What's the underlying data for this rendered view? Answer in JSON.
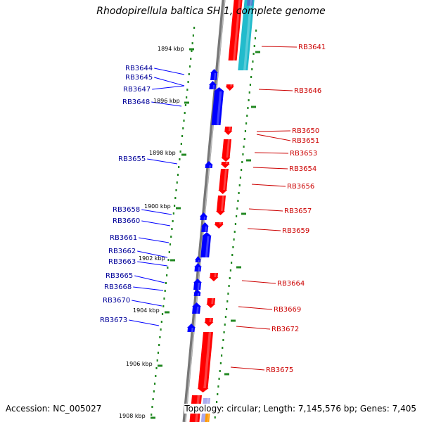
{
  "title": "Rhodopirellula baltica SH 1, complete genome",
  "footer": {
    "accession": "Accession: NC_005027",
    "summary": "Topology: circular; Length: 7,145,576 bp; Genes: 7,405"
  },
  "colors": {
    "forward": "#ff0000",
    "reverse": "#0000ff",
    "backbone": "#888888",
    "tick": "#228822",
    "forward_label": "#cc0000",
    "reverse_label": "#000099"
  },
  "scale_labels": [
    "1894 kbp",
    "1896 kbp",
    "1898 kbp",
    "1900 kbp",
    "1902 kbp",
    "1904 kbp",
    "1906 kbp",
    "1908 kbp"
  ],
  "reverse_genes": [
    "RB3644",
    "RB3645",
    "RB3647",
    "RB3648",
    "RB3655",
    "RB3658",
    "RB3660",
    "RB3661",
    "RB3662",
    "RB3663",
    "RB3665",
    "RB3668",
    "RB3670",
    "RB3673"
  ],
  "forward_genes": [
    "RB3641",
    "RB3646",
    "RB3650",
    "RB3651",
    "RB3653",
    "RB3654",
    "RB3656",
    "RB3657",
    "RB3659",
    "RB3664",
    "RB3669",
    "RB3672",
    "RB3675"
  ]
}
